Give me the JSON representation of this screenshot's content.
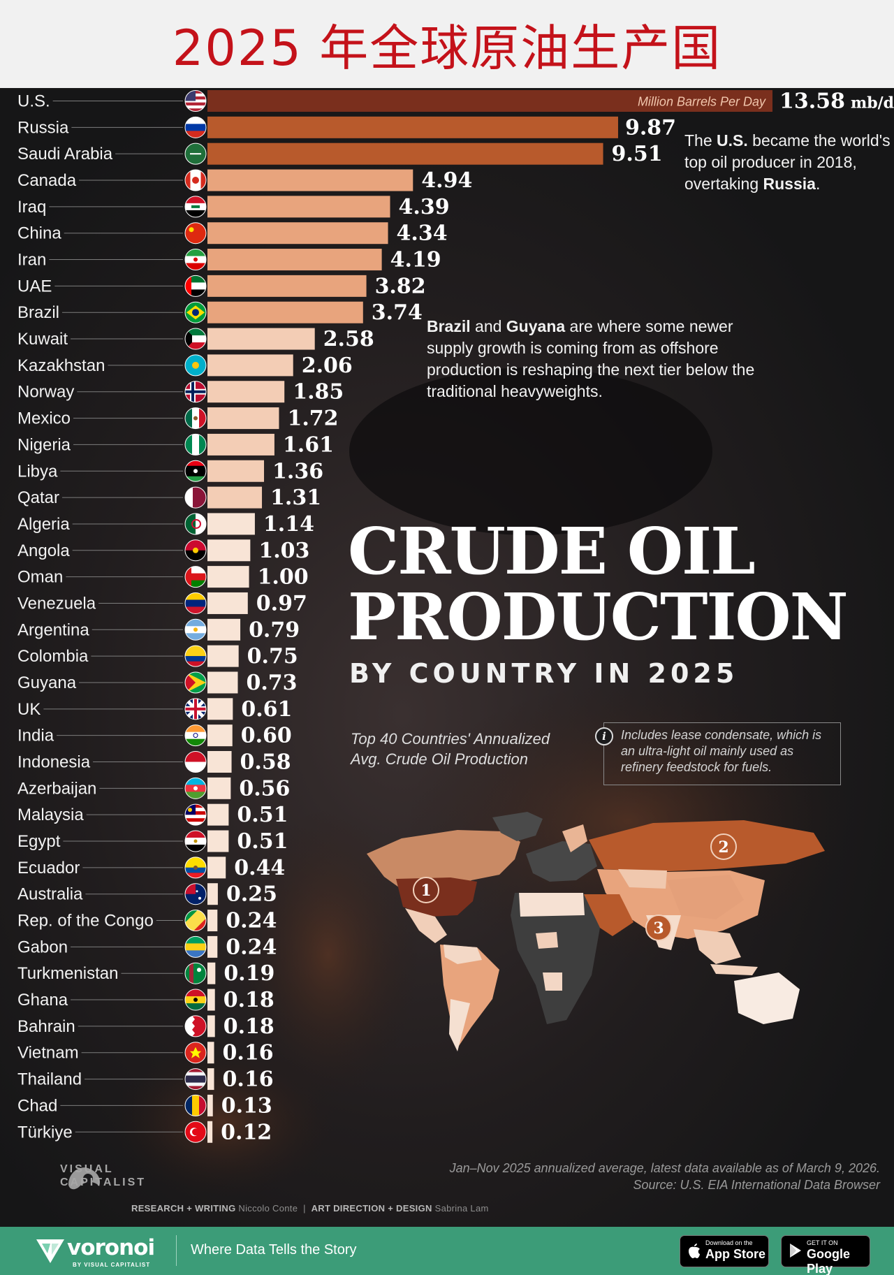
{
  "header": {
    "title": "2025 年全球原油生产国"
  },
  "chart_data": {
    "type": "bar",
    "orientation": "horizontal",
    "categories": [
      "U.S.",
      "Russia",
      "Saudi Arabia",
      "Canada",
      "Iraq",
      "China",
      "Iran",
      "UAE",
      "Brazil",
      "Kuwait",
      "Kazakhstan",
      "Norway",
      "Mexico",
      "Nigeria",
      "Libya",
      "Qatar",
      "Algeria",
      "Angola",
      "Oman",
      "Venezuela",
      "Argentina",
      "Colombia",
      "Guyana",
      "UK",
      "India",
      "Indonesia",
      "Azerbaijan",
      "Malaysia",
      "Egypt",
      "Ecuador",
      "Australia",
      "Rep. of the Congo",
      "Gabon",
      "Turkmenistan",
      "Ghana",
      "Bahrain",
      "Vietnam",
      "Thailand",
      "Chad",
      "Türkiye"
    ],
    "values": [
      13.58,
      9.87,
      9.51,
      4.94,
      4.39,
      4.34,
      4.19,
      3.82,
      3.74,
      2.58,
      2.06,
      1.85,
      1.72,
      1.61,
      1.36,
      1.31,
      1.14,
      1.03,
      1.0,
      0.97,
      0.79,
      0.75,
      0.73,
      0.61,
      0.6,
      0.58,
      0.56,
      0.51,
      0.51,
      0.44,
      0.25,
      0.24,
      0.24,
      0.19,
      0.18,
      0.18,
      0.16,
      0.16,
      0.13,
      0.12
    ],
    "value_labels": [
      "13.58",
      "9.87",
      "9.51",
      "4.94",
      "4.39",
      "4.34",
      "4.19",
      "3.82",
      "3.74",
      "2.58",
      "2.06",
      "1.85",
      "1.72",
      "1.61",
      "1.36",
      "1.31",
      "1.14",
      "1.03",
      "1.00",
      "0.97",
      "0.79",
      "0.75",
      "0.73",
      "0.61",
      "0.60",
      "0.58",
      "0.56",
      "0.51",
      "0.51",
      "0.44",
      "0.25",
      "0.24",
      "0.24",
      "0.19",
      "0.18",
      "0.18",
      "0.16",
      "0.16",
      "0.13",
      "0.12"
    ],
    "unit_label": "Million Barrels Per Day",
    "first_value_suffix": "mb/d",
    "xlim": [
      0,
      13.58
    ],
    "grid": false,
    "colors": {
      "top": "#7a2f1d",
      "high": "#b85a2c",
      "mid": "#e8a47d",
      "low": "#f3cdb5",
      "lowest": "#f8e4d6"
    }
  },
  "flags": [
    "us",
    "ru",
    "sa",
    "ca",
    "iq",
    "cn",
    "ir",
    "ae",
    "br",
    "kw",
    "kz",
    "no",
    "mx",
    "ng",
    "ly",
    "qa",
    "dz",
    "ao",
    "om",
    "ve",
    "ar",
    "co",
    "gy",
    "gb",
    "in",
    "id",
    "az",
    "my",
    "eg",
    "ec",
    "au",
    "cg",
    "ga",
    "tm",
    "gh",
    "bh",
    "vn",
    "th",
    "td",
    "tr"
  ],
  "annotations": {
    "us_note": {
      "p1": "The ",
      "b1": "U.S.",
      "p2": " became the world's top oil producer in 2018, overtaking ",
      "b2": "Russia",
      "p3": "."
    },
    "brazil_note": {
      "b1": "Brazil",
      "p1": " and ",
      "b2": "Guyana",
      "p2": " are where some newer supply growth is coming from as offshore production is reshaping the next tier below the traditional heavyweights."
    }
  },
  "title_block": {
    "line1": "CRUDE OIL",
    "line2": "PRODUCTION",
    "subtitle": "BY COUNTRY IN 2025",
    "description": "Top 40 Countries' Annualized Avg. Crude Oil Production",
    "note": "Includes lease condensate, which is an ultra-light oil mainly used as refinery feedstock for fuels.",
    "note_icon": "info-icon"
  },
  "map": {
    "markers": [
      "1",
      "2",
      "3"
    ]
  },
  "source": "Jan–Nov 2025 annualized average, latest data available as of March 9, 2026. Source: U.S. EIA International Data Browser",
  "credits": {
    "research_label": "RESEARCH + WRITING",
    "research_name": "Niccolo Conte",
    "sep": "|",
    "design_label": "ART DIRECTION + DESIGN",
    "design_name": "Sabrina Lam"
  },
  "brand": {
    "vc_line1": "VISUAL",
    "vc_line2": "CAPITALIST"
  },
  "footer": {
    "name": "voronoi",
    "by": "BY VISUAL CAPITALIST",
    "tagline": "Where Data Tells the Story",
    "app_store_small": "Download on the",
    "app_store": "App Store",
    "google_small": "GET IT ON",
    "google": "Google Play",
    "bg_color": "#3c9c78"
  }
}
